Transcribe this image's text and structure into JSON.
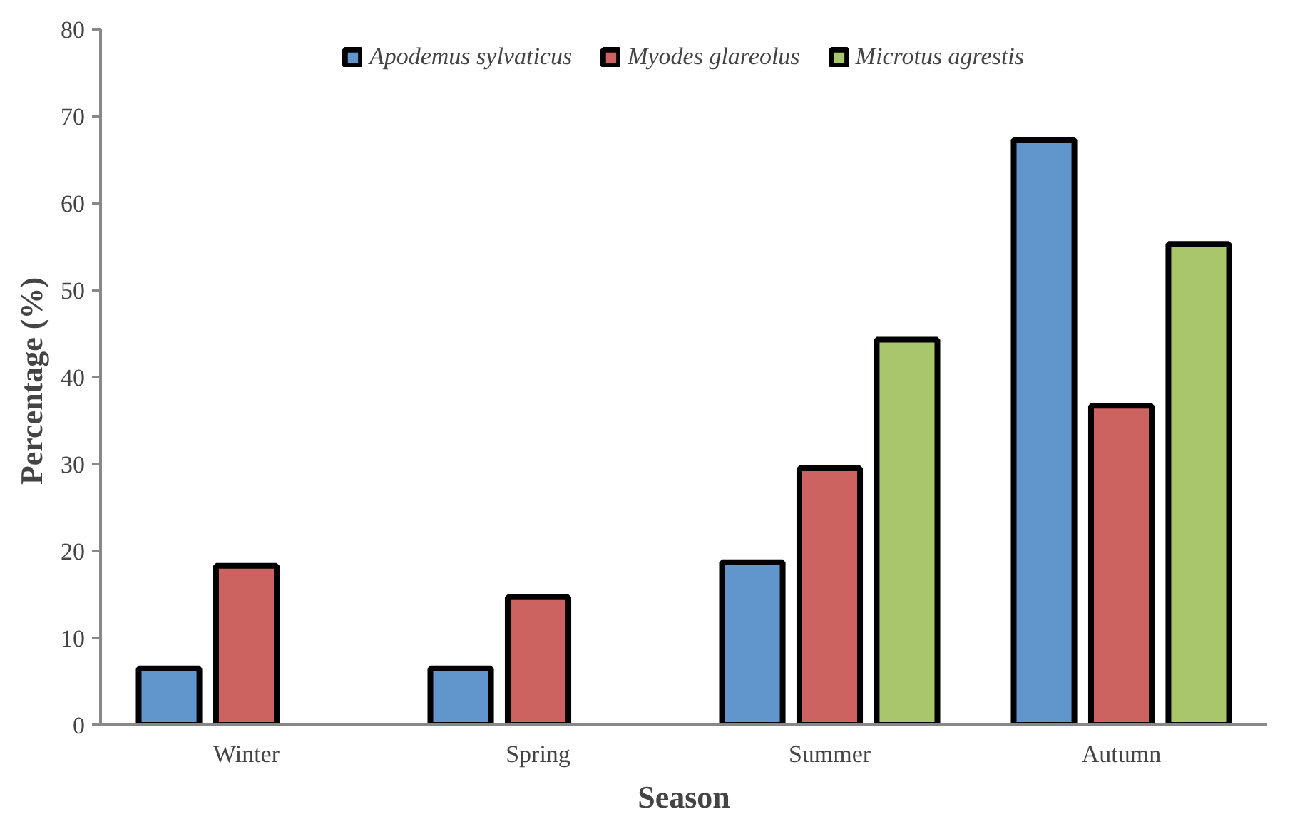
{
  "chart_data": {
    "type": "bar",
    "xlabel": "Season",
    "ylabel": "Percentage  (%)",
    "categories": [
      "Winter",
      "Spring",
      "Summer",
      "Autumn"
    ],
    "series": [
      {
        "name": "Apodemus sylvaticus",
        "color": "#6096cc",
        "values": [
          6.5,
          6.5,
          18.7,
          67.3
        ]
      },
      {
        "name": "Myodes glareolus",
        "color": "#cd6360",
        "values": [
          18.3,
          14.7,
          29.5,
          36.7
        ]
      },
      {
        "name": "Microtus agrestis",
        "color": "#a9c66a",
        "values": [
          null,
          null,
          44.3,
          55.3
        ]
      }
    ],
    "ylim": [
      0,
      80
    ],
    "yticks": [
      0,
      10,
      20,
      30,
      40,
      50,
      60,
      70,
      80
    ],
    "grid": false,
    "legend": "top"
  }
}
